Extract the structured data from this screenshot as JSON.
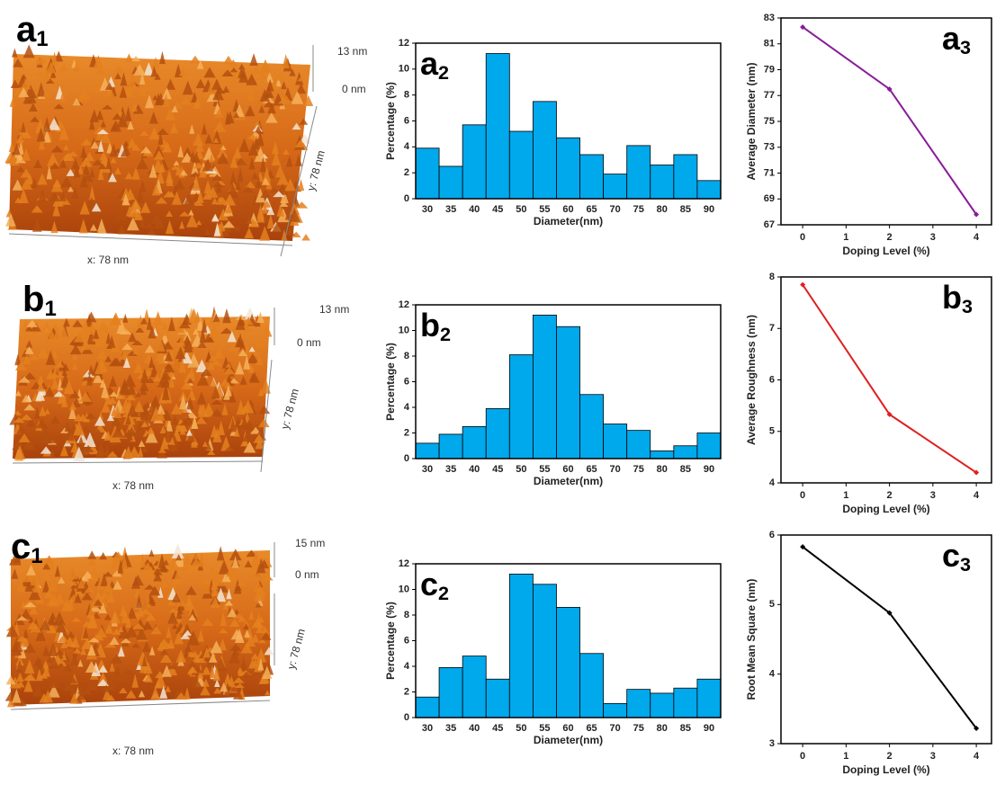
{
  "afm": [
    {
      "panel_label": {
        "letter": "a",
        "index": "1"
      },
      "z_top": "13 nm",
      "z_bottom": "0 nm",
      "y_label": "y: 78 nm",
      "x_label": "x: 78 nm"
    },
    {
      "panel_label": {
        "letter": "b",
        "index": "1"
      },
      "z_top": "13 nm",
      "z_bottom": "0 nm",
      "y_label": "y: 78 nm",
      "x_label": "x: 78 nm"
    },
    {
      "panel_label": {
        "letter": "c",
        "index": "1"
      },
      "z_top": "15 nm",
      "z_bottom": "0 nm",
      "y_label": "y: 78 nm",
      "x_label": "x: 78 nm"
    }
  ],
  "chart_data": [
    {
      "type": "bar",
      "panel_label": {
        "letter": "a",
        "index": "2"
      },
      "xlabel": "Diameter(nm)",
      "ylabel": "Percentage (%)",
      "categories": [
        30,
        35,
        40,
        45,
        50,
        55,
        60,
        65,
        70,
        75,
        80,
        85,
        90
      ],
      "values": [
        3.9,
        2.5,
        5.7,
        11.2,
        5.2,
        7.5,
        4.7,
        3.4,
        1.9,
        4.1,
        2.6,
        3.4,
        1.4
      ],
      "color": "#00a8ec",
      "ylim": [
        0,
        12
      ],
      "yticks": [
        0,
        2,
        4,
        6,
        8,
        10,
        12
      ]
    },
    {
      "type": "bar",
      "panel_label": {
        "letter": "b",
        "index": "2"
      },
      "xlabel": "Diameter(nm)",
      "ylabel": "Percentage (%)",
      "categories": [
        30,
        35,
        40,
        45,
        50,
        55,
        60,
        65,
        70,
        75,
        80,
        85,
        90
      ],
      "values": [
        1.2,
        1.9,
        2.5,
        3.9,
        8.1,
        11.2,
        10.3,
        5.0,
        2.7,
        2.2,
        0.6,
        1.0,
        2.0
      ],
      "color": "#00a8ec",
      "ylim": [
        0,
        12
      ],
      "yticks": [
        0,
        2,
        4,
        6,
        8,
        10,
        12
      ]
    },
    {
      "type": "bar",
      "panel_label": {
        "letter": "c",
        "index": "2"
      },
      "xlabel": "Diameter(nm)",
      "ylabel": "Percentage (%)",
      "categories": [
        30,
        35,
        40,
        45,
        50,
        55,
        60,
        65,
        70,
        75,
        80,
        85,
        90
      ],
      "values": [
        1.6,
        3.9,
        4.8,
        3.0,
        11.2,
        10.4,
        8.6,
        5.0,
        1.1,
        2.2,
        1.9,
        2.3,
        3.0
      ],
      "color": "#00a8ec",
      "ylim": [
        0,
        12
      ],
      "yticks": [
        0,
        2,
        4,
        6,
        8,
        10,
        12
      ]
    },
    {
      "type": "line",
      "panel_label": {
        "letter": "a",
        "index": "3"
      },
      "xlabel": "Doping Level (%)",
      "ylabel": "Average Diameter (nm)",
      "x": [
        0,
        2,
        4
      ],
      "values": [
        82.3,
        77.5,
        67.8
      ],
      "color": "#8a1a9b",
      "xlim": [
        -0.5,
        4.35
      ],
      "xticks": [
        0,
        1,
        2,
        3,
        4
      ],
      "ylim": [
        67,
        83
      ],
      "yticks": [
        67,
        69,
        71,
        73,
        75,
        77,
        79,
        81,
        83
      ]
    },
    {
      "type": "line",
      "panel_label": {
        "letter": "b",
        "index": "3"
      },
      "xlabel": "Doping Level (%)",
      "ylabel": "Average Roughness (nm)",
      "x": [
        0,
        2,
        4
      ],
      "values": [
        7.85,
        5.33,
        4.2
      ],
      "color": "#e02020",
      "xlim": [
        -0.5,
        4.35
      ],
      "xticks": [
        0,
        1,
        2,
        3,
        4
      ],
      "ylim": [
        4,
        8
      ],
      "yticks": [
        4,
        5,
        6,
        7,
        8
      ]
    },
    {
      "type": "line",
      "panel_label": {
        "letter": "c",
        "index": "3"
      },
      "xlabel": "Doping Level (%)",
      "ylabel": "Root Mean Square (nm)",
      "x": [
        0,
        2,
        4
      ],
      "values": [
        5.83,
        4.88,
        3.22
      ],
      "color": "#000000",
      "xlim": [
        -0.5,
        4.35
      ],
      "xticks": [
        0,
        1,
        2,
        3,
        4
      ],
      "ylim": [
        3,
        6
      ],
      "yticks": [
        3,
        4,
        5,
        6
      ]
    }
  ]
}
